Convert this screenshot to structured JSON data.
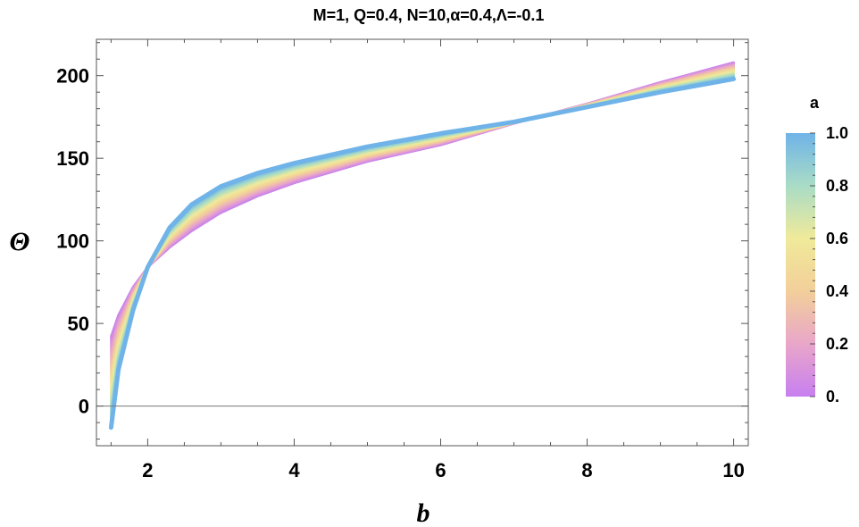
{
  "chart_data": {
    "type": "line",
    "title": "M=1, Q=0.4, N=10,α=0.4,Λ=-0.1",
    "xlabel": "b",
    "ylabel": "Θ",
    "xlim": [
      1.3,
      10.2
    ],
    "ylim": [
      -24,
      222
    ],
    "x_ticks": [
      "2",
      "4",
      "6",
      "8",
      "10"
    ],
    "y_ticks": [
      "0",
      "50",
      "100",
      "150",
      "200"
    ],
    "zero_line": true,
    "grid": false,
    "x": [
      1.5,
      1.6,
      1.8,
      2.0,
      2.3,
      2.6,
      3.0,
      3.5,
      4.0,
      5.0,
      6.0,
      7.0,
      8.0,
      9.0,
      10.0
    ],
    "series": [
      {
        "a": 0.0,
        "values": [
          42,
          55,
          72,
          84,
          96,
          106,
          117,
          127,
          135,
          148,
          158,
          171,
          183,
          196,
          208
        ]
      },
      {
        "a": 1.0,
        "values": [
          -13,
          22,
          58,
          84,
          108,
          122,
          133,
          141,
          147,
          157,
          165,
          172,
          181,
          190,
          198
        ]
      }
    ],
    "colorbar": {
      "label": "a",
      "range": [
        0,
        1
      ],
      "ticks": [
        "0.",
        "0.2",
        "0.4",
        "0.6",
        "0.8",
        "1.0"
      ],
      "colors": [
        "#c77ff0",
        "#e9a6c9",
        "#f2cf9a",
        "#f0ea9a",
        "#a9dcc6",
        "#6fb3e8"
      ]
    }
  }
}
